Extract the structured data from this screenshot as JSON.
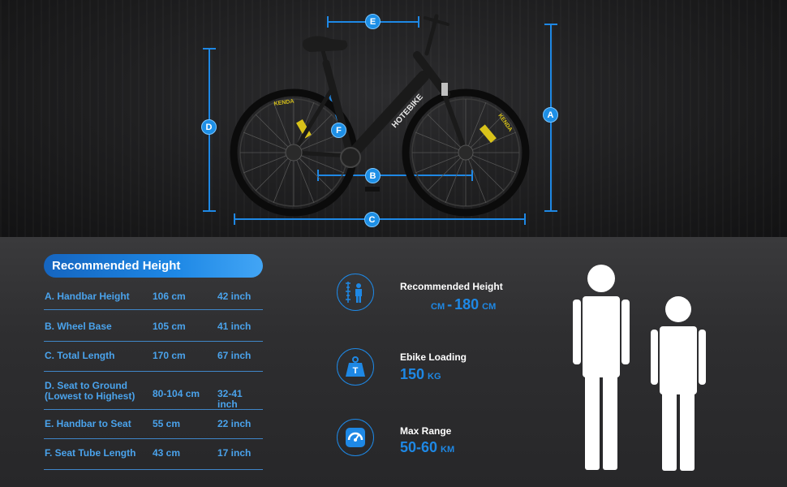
{
  "dimension_badges": {
    "a": "A",
    "b": "B",
    "c": "C",
    "d": "D",
    "e": "E",
    "f": "F"
  },
  "bike": {
    "brand": "HOTEBIKE",
    "tire_brand": "KENDA"
  },
  "recommended_height_table": {
    "title": "Recommended Height",
    "rows": [
      {
        "label": "A. Handbar Height",
        "cm": "106 cm",
        "inch": "42 inch"
      },
      {
        "label": "B. Wheel Base",
        "cm": "105 cm",
        "inch": "41 inch"
      },
      {
        "label": "C. Total Length",
        "cm": "170 cm",
        "inch": "67 inch"
      },
      {
        "label": "D. Seat to Ground\n(Lowest to Highest)",
        "cm": "80-104 cm",
        "inch": "32-41 inch"
      },
      {
        "label": "E. Handbar to Seat",
        "cm": "55 cm",
        "inch": "22 inch"
      },
      {
        "label": "F. Seat Tube Length",
        "cm": "43 cm",
        "inch": "17 inch"
      }
    ]
  },
  "features": {
    "height": {
      "title": "Recommended Height",
      "unit_left": "CM",
      "separator": "-",
      "value": "180",
      "unit_right": "CM",
      "icon": "height-ruler-icon"
    },
    "loading": {
      "title": "Ebike Loading",
      "value": "150",
      "unit": "KG",
      "icon_letter": "T",
      "icon": "weight-icon"
    },
    "range": {
      "title": "Max Range",
      "value": "50-60",
      "unit": "KM",
      "icon": "speedometer-icon"
    }
  },
  "colors": {
    "accent": "#1e88e5",
    "label_blue": "#4aa3ec",
    "background": "#2b2b2d",
    "figure": "#ffffff"
  }
}
